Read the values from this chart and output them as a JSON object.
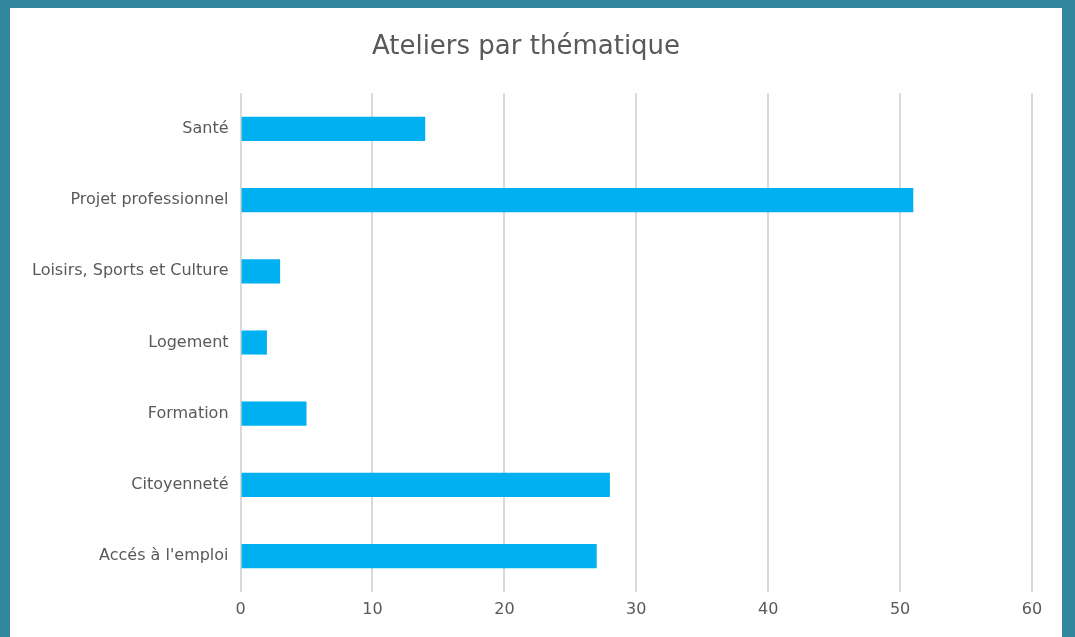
{
  "chart_data": {
    "type": "bar",
    "orientation": "horizontal",
    "title": "Ateliers par thématique",
    "categories": [
      "Santé",
      "Projet professionnel",
      "Loisirs, Sports et Culture",
      "Logement",
      "Formation",
      "Citoyenneté",
      "Accés à l'emploi"
    ],
    "values": [
      14,
      51,
      3,
      2,
      5,
      28,
      27
    ],
    "color": "#00b0f0",
    "xlim": [
      0,
      60
    ],
    "xticks": [
      0,
      10,
      20,
      30,
      40,
      50,
      60
    ],
    "grid": "x",
    "legend": false
  }
}
